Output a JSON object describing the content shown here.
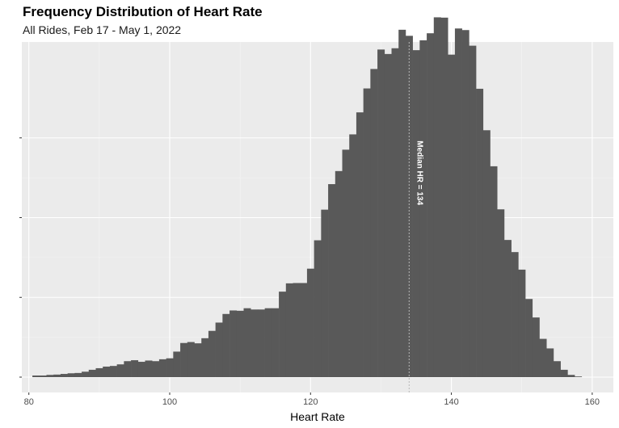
{
  "chart_data": {
    "type": "bar",
    "title": "Frequency Distribution of Heart Rate",
    "subtitle": "All Rides, Feb 17 - May 1, 2022",
    "xlabel": "Heart Rate",
    "ylabel": "",
    "xlim": [
      79,
      163
    ],
    "ylim": [
      0,
      100
    ],
    "x_ticks": [
      80,
      100,
      120,
      140,
      160
    ],
    "x_tick_labels": [
      "80",
      "100",
      "120",
      "140",
      "160"
    ],
    "y_ticks": [
      0,
      25,
      50,
      75
    ],
    "y_tick_labels": [
      "",
      "",
      "",
      ""
    ],
    "grid": true,
    "bin_width": 1,
    "bins": [
      81,
      82,
      83,
      84,
      85,
      86,
      87,
      88,
      89,
      90,
      91,
      92,
      93,
      94,
      95,
      96,
      97,
      98,
      99,
      100,
      101,
      102,
      103,
      104,
      105,
      106,
      107,
      108,
      109,
      110,
      111,
      112,
      113,
      114,
      115,
      116,
      117,
      118,
      119,
      120,
      121,
      122,
      123,
      124,
      125,
      126,
      127,
      128,
      129,
      130,
      131,
      132,
      133,
      134,
      135,
      136,
      137,
      138,
      139,
      140,
      141,
      142,
      143,
      144,
      145,
      146,
      147,
      148,
      149,
      150,
      151,
      152,
      153,
      154,
      155,
      156,
      157,
      158
    ],
    "counts": [
      0.5,
      0.5,
      0.7,
      0.8,
      1.0,
      1.2,
      1.3,
      1.7,
      2.3,
      2.8,
      3.3,
      3.5,
      4.0,
      5.0,
      5.3,
      4.8,
      5.2,
      5.0,
      5.6,
      5.9,
      8.0,
      10.7,
      11.0,
      10.6,
      12.2,
      14.5,
      17.1,
      19.8,
      20.9,
      20.8,
      21.6,
      21.2,
      21.2,
      21.6,
      21.6,
      26.8,
      29.4,
      29.5,
      29.5,
      34.0,
      42.9,
      52.5,
      60.5,
      64.6,
      71.3,
      76.1,
      83.0,
      90.5,
      96.6,
      102.7,
      101.3,
      103.1,
      108.9,
      107.0,
      102.5,
      105.6,
      107.8,
      112.8,
      112.7,
      101.1,
      109.3,
      108.8,
      103.9,
      90.4,
      77.4,
      66.1,
      52.6,
      43.0,
      39.2,
      33.7,
      24.5,
      18.7,
      12.0,
      9.0,
      5.0,
      2.3,
      0.7,
      0.2
    ],
    "annotations": [
      {
        "x": 134,
        "text": "Median HR = 134"
      }
    ],
    "colors": {
      "bar": "#595959",
      "panel": "#ebebeb",
      "grid_major": "#ffffff",
      "median_line": "#b8b8b8"
    }
  }
}
